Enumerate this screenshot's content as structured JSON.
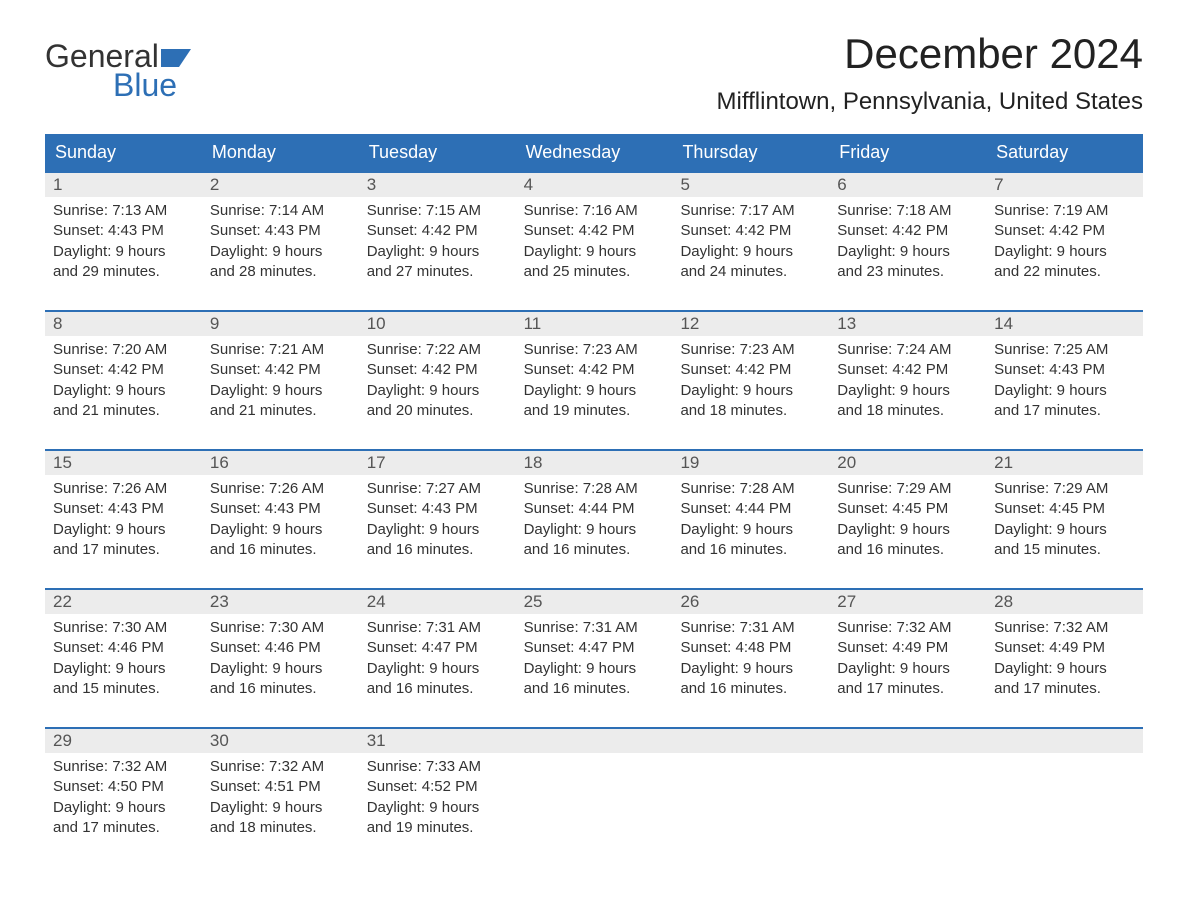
{
  "logo": {
    "text_top": "General",
    "text_bottom": "Blue",
    "flag_color": "#2d6fb5"
  },
  "title": "December 2024",
  "location": "Mifflintown, Pennsylvania, United States",
  "colors": {
    "header_bg": "#2d6fb5",
    "header_text": "#ffffff",
    "daynum_bg": "#ececec",
    "week_border": "#2d6fb5",
    "body_text": "#333333",
    "page_bg": "#ffffff"
  },
  "typography": {
    "title_fontsize": 42,
    "location_fontsize": 24,
    "header_fontsize": 18,
    "daynum_fontsize": 17,
    "cell_fontsize": 15
  },
  "layout": {
    "columns": 7,
    "rows": 5
  },
  "day_headers": [
    "Sunday",
    "Monday",
    "Tuesday",
    "Wednesday",
    "Thursday",
    "Friday",
    "Saturday"
  ],
  "weeks": [
    [
      {
        "n": "1",
        "sr": "Sunrise: 7:13 AM",
        "ss": "Sunset: 4:43 PM",
        "d1": "Daylight: 9 hours",
        "d2": "and 29 minutes."
      },
      {
        "n": "2",
        "sr": "Sunrise: 7:14 AM",
        "ss": "Sunset: 4:43 PM",
        "d1": "Daylight: 9 hours",
        "d2": "and 28 minutes."
      },
      {
        "n": "3",
        "sr": "Sunrise: 7:15 AM",
        "ss": "Sunset: 4:42 PM",
        "d1": "Daylight: 9 hours",
        "d2": "and 27 minutes."
      },
      {
        "n": "4",
        "sr": "Sunrise: 7:16 AM",
        "ss": "Sunset: 4:42 PM",
        "d1": "Daylight: 9 hours",
        "d2": "and 25 minutes."
      },
      {
        "n": "5",
        "sr": "Sunrise: 7:17 AM",
        "ss": "Sunset: 4:42 PM",
        "d1": "Daylight: 9 hours",
        "d2": "and 24 minutes."
      },
      {
        "n": "6",
        "sr": "Sunrise: 7:18 AM",
        "ss": "Sunset: 4:42 PM",
        "d1": "Daylight: 9 hours",
        "d2": "and 23 minutes."
      },
      {
        "n": "7",
        "sr": "Sunrise: 7:19 AM",
        "ss": "Sunset: 4:42 PM",
        "d1": "Daylight: 9 hours",
        "d2": "and 22 minutes."
      }
    ],
    [
      {
        "n": "8",
        "sr": "Sunrise: 7:20 AM",
        "ss": "Sunset: 4:42 PM",
        "d1": "Daylight: 9 hours",
        "d2": "and 21 minutes."
      },
      {
        "n": "9",
        "sr": "Sunrise: 7:21 AM",
        "ss": "Sunset: 4:42 PM",
        "d1": "Daylight: 9 hours",
        "d2": "and 21 minutes."
      },
      {
        "n": "10",
        "sr": "Sunrise: 7:22 AM",
        "ss": "Sunset: 4:42 PM",
        "d1": "Daylight: 9 hours",
        "d2": "and 20 minutes."
      },
      {
        "n": "11",
        "sr": "Sunrise: 7:23 AM",
        "ss": "Sunset: 4:42 PM",
        "d1": "Daylight: 9 hours",
        "d2": "and 19 minutes."
      },
      {
        "n": "12",
        "sr": "Sunrise: 7:23 AM",
        "ss": "Sunset: 4:42 PM",
        "d1": "Daylight: 9 hours",
        "d2": "and 18 minutes."
      },
      {
        "n": "13",
        "sr": "Sunrise: 7:24 AM",
        "ss": "Sunset: 4:42 PM",
        "d1": "Daylight: 9 hours",
        "d2": "and 18 minutes."
      },
      {
        "n": "14",
        "sr": "Sunrise: 7:25 AM",
        "ss": "Sunset: 4:43 PM",
        "d1": "Daylight: 9 hours",
        "d2": "and 17 minutes."
      }
    ],
    [
      {
        "n": "15",
        "sr": "Sunrise: 7:26 AM",
        "ss": "Sunset: 4:43 PM",
        "d1": "Daylight: 9 hours",
        "d2": "and 17 minutes."
      },
      {
        "n": "16",
        "sr": "Sunrise: 7:26 AM",
        "ss": "Sunset: 4:43 PM",
        "d1": "Daylight: 9 hours",
        "d2": "and 16 minutes."
      },
      {
        "n": "17",
        "sr": "Sunrise: 7:27 AM",
        "ss": "Sunset: 4:43 PM",
        "d1": "Daylight: 9 hours",
        "d2": "and 16 minutes."
      },
      {
        "n": "18",
        "sr": "Sunrise: 7:28 AM",
        "ss": "Sunset: 4:44 PM",
        "d1": "Daylight: 9 hours",
        "d2": "and 16 minutes."
      },
      {
        "n": "19",
        "sr": "Sunrise: 7:28 AM",
        "ss": "Sunset: 4:44 PM",
        "d1": "Daylight: 9 hours",
        "d2": "and 16 minutes."
      },
      {
        "n": "20",
        "sr": "Sunrise: 7:29 AM",
        "ss": "Sunset: 4:45 PM",
        "d1": "Daylight: 9 hours",
        "d2": "and 16 minutes."
      },
      {
        "n": "21",
        "sr": "Sunrise: 7:29 AM",
        "ss": "Sunset: 4:45 PM",
        "d1": "Daylight: 9 hours",
        "d2": "and 15 minutes."
      }
    ],
    [
      {
        "n": "22",
        "sr": "Sunrise: 7:30 AM",
        "ss": "Sunset: 4:46 PM",
        "d1": "Daylight: 9 hours",
        "d2": "and 15 minutes."
      },
      {
        "n": "23",
        "sr": "Sunrise: 7:30 AM",
        "ss": "Sunset: 4:46 PM",
        "d1": "Daylight: 9 hours",
        "d2": "and 16 minutes."
      },
      {
        "n": "24",
        "sr": "Sunrise: 7:31 AM",
        "ss": "Sunset: 4:47 PM",
        "d1": "Daylight: 9 hours",
        "d2": "and 16 minutes."
      },
      {
        "n": "25",
        "sr": "Sunrise: 7:31 AM",
        "ss": "Sunset: 4:47 PM",
        "d1": "Daylight: 9 hours",
        "d2": "and 16 minutes."
      },
      {
        "n": "26",
        "sr": "Sunrise: 7:31 AM",
        "ss": "Sunset: 4:48 PM",
        "d1": "Daylight: 9 hours",
        "d2": "and 16 minutes."
      },
      {
        "n": "27",
        "sr": "Sunrise: 7:32 AM",
        "ss": "Sunset: 4:49 PM",
        "d1": "Daylight: 9 hours",
        "d2": "and 17 minutes."
      },
      {
        "n": "28",
        "sr": "Sunrise: 7:32 AM",
        "ss": "Sunset: 4:49 PM",
        "d1": "Daylight: 9 hours",
        "d2": "and 17 minutes."
      }
    ],
    [
      {
        "n": "29",
        "sr": "Sunrise: 7:32 AM",
        "ss": "Sunset: 4:50 PM",
        "d1": "Daylight: 9 hours",
        "d2": "and 17 minutes."
      },
      {
        "n": "30",
        "sr": "Sunrise: 7:32 AM",
        "ss": "Sunset: 4:51 PM",
        "d1": "Daylight: 9 hours",
        "d2": "and 18 minutes."
      },
      {
        "n": "31",
        "sr": "Sunrise: 7:33 AM",
        "ss": "Sunset: 4:52 PM",
        "d1": "Daylight: 9 hours",
        "d2": "and 19 minutes."
      },
      {
        "empty": true
      },
      {
        "empty": true
      },
      {
        "empty": true
      },
      {
        "empty": true
      }
    ]
  ]
}
